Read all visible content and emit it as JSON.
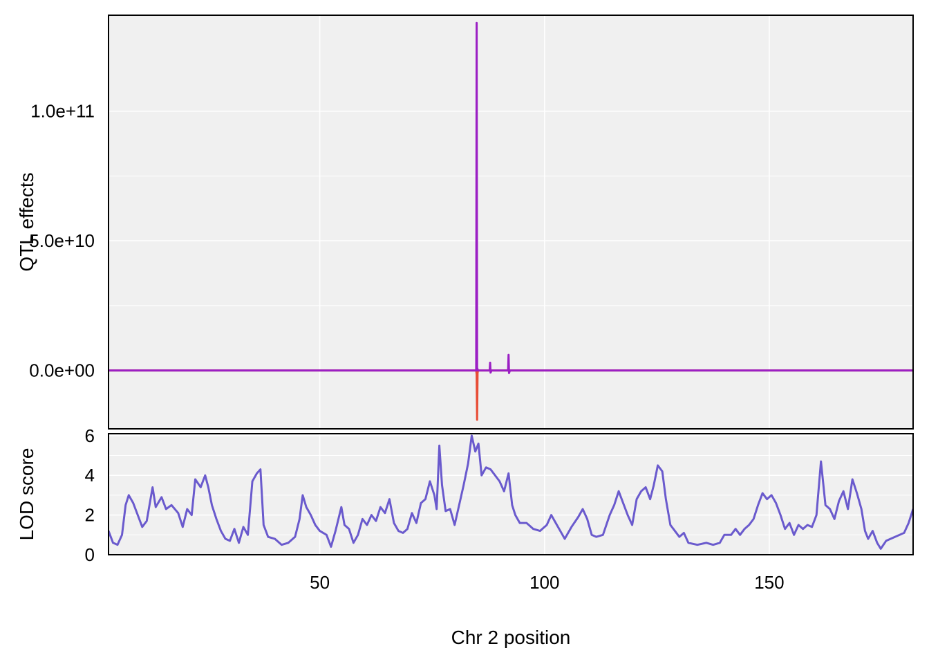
{
  "chart_data": [
    {
      "type": "line",
      "ylabel": "QTL effects",
      "xlim": [
        3,
        182
      ],
      "ylim": [
        -22500000000,
        137000000000
      ],
      "yticks": [
        {
          "value": 0,
          "label": "0.0e+00"
        },
        {
          "value": 50000000000,
          "label": "5.0e+10"
        },
        {
          "value": 100000000000,
          "label": "1.0e+11"
        }
      ],
      "xgrid": [
        50,
        100,
        150
      ],
      "grid": true,
      "background": "#f0f0f0",
      "series": [
        {
          "color": "#e84d36",
          "points": [
            [
              3,
              0
            ],
            [
              84.8,
              0
            ],
            [
              84.9,
              -1500000000
            ],
            [
              85.0,
              -19000000000
            ],
            [
              85.1,
              -1000000000
            ],
            [
              85.2,
              0
            ],
            [
              182,
              0
            ]
          ]
        },
        {
          "color": "#9b1fc4",
          "points": [
            [
              3,
              0
            ],
            [
              84.8,
              0
            ],
            [
              84.9,
              134000000000
            ],
            [
              85.0,
              1000000000
            ],
            [
              85.2,
              0
            ],
            [
              87.8,
              0
            ],
            [
              87.9,
              3000000000
            ],
            [
              88.0,
              -800000000
            ],
            [
              88.2,
              0
            ],
            [
              91.9,
              0
            ],
            [
              92.0,
              6000000000
            ],
            [
              92.1,
              -1000000000
            ],
            [
              92.3,
              0
            ],
            [
              182,
              0
            ]
          ]
        }
      ]
    },
    {
      "type": "line",
      "xlabel": "Chr 2 position",
      "ylabel": "LOD score",
      "xlim": [
        3,
        182
      ],
      "ylim": [
        0,
        6.1
      ],
      "yticks": [
        0,
        2,
        4,
        6
      ],
      "xticks": [
        50,
        100,
        150
      ],
      "grid": true,
      "background": "#f0f0f0",
      "series": [
        {
          "color": "#6a5acd",
          "points": [
            [
              3,
              1.2
            ],
            [
              4,
              0.6
            ],
            [
              5,
              0.5
            ],
            [
              6,
              1.0
            ],
            [
              6.8,
              2.5
            ],
            [
              7.5,
              3.0
            ],
            [
              8.5,
              2.6
            ],
            [
              9.5,
              2.0
            ],
            [
              10.5,
              1.4
            ],
            [
              11.5,
              1.7
            ],
            [
              12.8,
              3.4
            ],
            [
              13.5,
              2.4
            ],
            [
              14.8,
              2.9
            ],
            [
              15.8,
              2.3
            ],
            [
              17,
              2.5
            ],
            [
              18.5,
              2.1
            ],
            [
              19.5,
              1.4
            ],
            [
              20.5,
              2.3
            ],
            [
              21.5,
              2.0
            ],
            [
              22.3,
              3.8
            ],
            [
              23.5,
              3.4
            ],
            [
              24.5,
              4.0
            ],
            [
              25.2,
              3.4
            ],
            [
              26,
              2.5
            ],
            [
              27,
              1.8
            ],
            [
              28,
              1.2
            ],
            [
              29,
              0.8
            ],
            [
              30,
              0.7
            ],
            [
              31,
              1.3
            ],
            [
              32,
              0.6
            ],
            [
              33,
              1.4
            ],
            [
              34,
              1.0
            ],
            [
              35,
              3.7
            ],
            [
              36,
              4.1
            ],
            [
              36.8,
              4.3
            ],
            [
              37.5,
              1.5
            ],
            [
              38.5,
              0.9
            ],
            [
              40,
              0.8
            ],
            [
              41.5,
              0.5
            ],
            [
              43,
              0.6
            ],
            [
              44.5,
              0.9
            ],
            [
              45.5,
              1.8
            ],
            [
              46.2,
              3.0
            ],
            [
              47,
              2.4
            ],
            [
              48,
              2.0
            ],
            [
              49,
              1.5
            ],
            [
              50,
              1.2
            ],
            [
              51.5,
              1.0
            ],
            [
              52.5,
              0.4
            ],
            [
              53.5,
              1.2
            ],
            [
              54.8,
              2.4
            ],
            [
              55.5,
              1.5
            ],
            [
              56.5,
              1.3
            ],
            [
              57.5,
              0.6
            ],
            [
              58.5,
              1.0
            ],
            [
              59.5,
              1.8
            ],
            [
              60.5,
              1.5
            ],
            [
              61.5,
              2.0
            ],
            [
              62.5,
              1.7
            ],
            [
              63.5,
              2.4
            ],
            [
              64.5,
              2.1
            ],
            [
              65.5,
              2.8
            ],
            [
              66.5,
              1.6
            ],
            [
              67.5,
              1.2
            ],
            [
              68.5,
              1.1
            ],
            [
              69.5,
              1.3
            ],
            [
              70.5,
              2.1
            ],
            [
              71.5,
              1.6
            ],
            [
              72.5,
              2.6
            ],
            [
              73.5,
              2.8
            ],
            [
              74.5,
              3.7
            ],
            [
              75.5,
              3.0
            ],
            [
              76,
              2.3
            ],
            [
              76.6,
              5.5
            ],
            [
              77.2,
              3.5
            ],
            [
              78,
              2.2
            ],
            [
              79,
              2.3
            ],
            [
              80,
              1.5
            ],
            [
              81,
              2.5
            ],
            [
              82,
              3.5
            ],
            [
              83,
              4.6
            ],
            [
              83.8,
              6.0
            ],
            [
              84.6,
              5.2
            ],
            [
              85.3,
              5.6
            ],
            [
              86,
              4.0
            ],
            [
              87,
              4.4
            ],
            [
              88,
              4.3
            ],
            [
              89,
              4.0
            ],
            [
              90,
              3.7
            ],
            [
              91,
              3.2
            ],
            [
              92,
              4.1
            ],
            [
              92.8,
              2.5
            ],
            [
              93.5,
              2.0
            ],
            [
              94.5,
              1.6
            ],
            [
              96,
              1.6
            ],
            [
              97.5,
              1.3
            ],
            [
              99,
              1.2
            ],
            [
              100.5,
              1.5
            ],
            [
              101.5,
              2.0
            ],
            [
              102.5,
              1.6
            ],
            [
              103.5,
              1.2
            ],
            [
              104.5,
              0.8
            ],
            [
              106,
              1.4
            ],
            [
              107.5,
              1.9
            ],
            [
              108.5,
              2.3
            ],
            [
              109.5,
              1.8
            ],
            [
              110.5,
              1.0
            ],
            [
              111.5,
              0.9
            ],
            [
              113,
              1.0
            ],
            [
              114.5,
              2.0
            ],
            [
              115.5,
              2.5
            ],
            [
              116.5,
              3.2
            ],
            [
              117.5,
              2.6
            ],
            [
              118.5,
              2.0
            ],
            [
              119.5,
              1.5
            ],
            [
              120.5,
              2.8
            ],
            [
              121.5,
              3.2
            ],
            [
              122.5,
              3.4
            ],
            [
              123.5,
              2.8
            ],
            [
              124.3,
              3.5
            ],
            [
              125.2,
              4.5
            ],
            [
              126.2,
              4.2
            ],
            [
              127,
              2.8
            ],
            [
              128,
              1.5
            ],
            [
              129,
              1.2
            ],
            [
              130,
              0.9
            ],
            [
              131,
              1.1
            ],
            [
              132,
              0.6
            ],
            [
              134,
              0.5
            ],
            [
              136,
              0.6
            ],
            [
              137.5,
              0.5
            ],
            [
              139,
              0.6
            ],
            [
              140,
              1.0
            ],
            [
              141.5,
              1.0
            ],
            [
              142.5,
              1.3
            ],
            [
              143.5,
              1.0
            ],
            [
              144.5,
              1.3
            ],
            [
              145.5,
              1.5
            ],
            [
              146.5,
              1.8
            ],
            [
              147.5,
              2.5
            ],
            [
              148.5,
              3.1
            ],
            [
              149.5,
              2.8
            ],
            [
              150.5,
              3.0
            ],
            [
              151.5,
              2.6
            ],
            [
              152.5,
              2.0
            ],
            [
              153.5,
              1.3
            ],
            [
              154.5,
              1.6
            ],
            [
              155.5,
              1.0
            ],
            [
              156.5,
              1.5
            ],
            [
              157.5,
              1.3
            ],
            [
              158.5,
              1.5
            ],
            [
              159.5,
              1.4
            ],
            [
              160.5,
              2.0
            ],
            [
              161.5,
              4.7
            ],
            [
              162.5,
              2.5
            ],
            [
              163.5,
              2.3
            ],
            [
              164.5,
              1.8
            ],
            [
              165.5,
              2.7
            ],
            [
              166.5,
              3.2
            ],
            [
              167.5,
              2.3
            ],
            [
              168.5,
              3.8
            ],
            [
              169.5,
              3.1
            ],
            [
              170.5,
              2.3
            ],
            [
              171.3,
              1.2
            ],
            [
              172,
              0.8
            ],
            [
              173,
              1.2
            ],
            [
              174,
              0.6
            ],
            [
              174.8,
              0.3
            ],
            [
              176,
              0.7
            ],
            [
              178,
              0.9
            ],
            [
              180,
              1.1
            ],
            [
              181,
              1.6
            ],
            [
              182,
              2.3
            ]
          ]
        }
      ]
    }
  ]
}
